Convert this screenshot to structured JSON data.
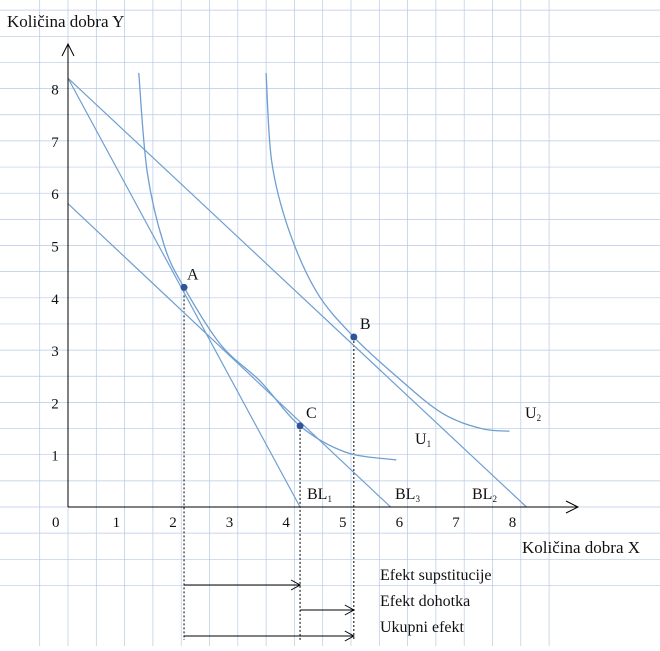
{
  "chart_data": {
    "type": "line",
    "ylabel": "Količina dobra Y",
    "xlabel": "Količina dobra X",
    "xlim": [
      0,
      8.5
    ],
    "ylim": [
      0,
      8.4
    ],
    "x_ticks": [
      "0",
      "1",
      "2",
      "3",
      "4",
      "5",
      "6",
      "7",
      "8"
    ],
    "y_ticks": [
      "1",
      "2",
      "3",
      "4",
      "5",
      "6",
      "7",
      "8"
    ],
    "grid": true,
    "colors": {
      "curve": "#6f9fd0",
      "point": "#2f5597",
      "axis": "#000000",
      "grid": "#b7c9e6"
    },
    "budget_lines": [
      {
        "name": "BL",
        "sub": "1",
        "points": [
          [
            0,
            8.2
          ],
          [
            4.1,
            0
          ]
        ]
      },
      {
        "name": "BL",
        "sub": "2",
        "points": [
          [
            0,
            8.2
          ],
          [
            8.1,
            0
          ]
        ]
      },
      {
        "name": "BL",
        "sub": "3",
        "points": [
          [
            0,
            5.8
          ],
          [
            5.7,
            0
          ]
        ]
      }
    ],
    "indifference_curves": [
      {
        "name": "U",
        "sub": "1",
        "points": [
          [
            1.25,
            8.3
          ],
          [
            1.4,
            6.4
          ],
          [
            1.7,
            5.0
          ],
          [
            2.05,
            4.2
          ],
          [
            2.7,
            3.1
          ],
          [
            3.4,
            2.4
          ],
          [
            4.1,
            1.55
          ],
          [
            4.9,
            1.05
          ],
          [
            5.8,
            0.9
          ]
        ]
      },
      {
        "name": "U",
        "sub": "2",
        "points": [
          [
            3.5,
            8.3
          ],
          [
            3.6,
            6.6
          ],
          [
            3.9,
            5.3
          ],
          [
            4.4,
            4.1
          ],
          [
            5.05,
            3.25
          ],
          [
            5.8,
            2.5
          ],
          [
            6.6,
            1.8
          ],
          [
            7.3,
            1.5
          ],
          [
            7.8,
            1.45
          ]
        ]
      }
    ],
    "points": [
      {
        "label": "A",
        "x": 2.05,
        "y": 4.2
      },
      {
        "label": "B",
        "x": 5.05,
        "y": 3.25
      },
      {
        "label": "C",
        "x": 4.1,
        "y": 1.55
      }
    ],
    "effects": [
      {
        "label": "Efekt supstitucije",
        "from": 2.05,
        "to": 4.1
      },
      {
        "label": "Efekt dohotka",
        "from": 4.1,
        "to": 5.05
      },
      {
        "label": "Ukupni efekt",
        "from": 2.05,
        "to": 5.05
      }
    ]
  }
}
